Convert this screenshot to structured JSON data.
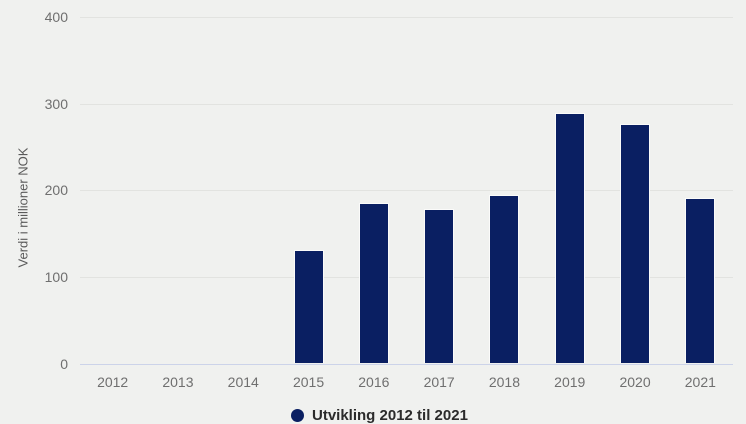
{
  "chart_data": {
    "type": "bar",
    "title": "",
    "categories": [
      "2012",
      "2013",
      "2014",
      "2015",
      "2016",
      "2017",
      "2018",
      "2019",
      "2020",
      "2021"
    ],
    "values": [
      0,
      0,
      0,
      131,
      185,
      178,
      194,
      289,
      276,
      191
    ],
    "xlabel": "",
    "ylabel": "Verdi i millioner NOK",
    "ylim": [
      0,
      400
    ],
    "yticks": [
      0,
      100,
      200,
      300,
      400
    ],
    "grid": true,
    "legend": {
      "position": "bottom",
      "label": "Utvikling 2012 til 2021"
    }
  },
  "colors": {
    "background": "#f0f1ef",
    "bar": "#0a1f62",
    "gridline": "#e2e3e0",
    "zero_line": "#ccd3e9",
    "tick_label": "#6f6f6f",
    "axis_title": "#5a5a5a",
    "legend_text": "#2b2b2b"
  }
}
